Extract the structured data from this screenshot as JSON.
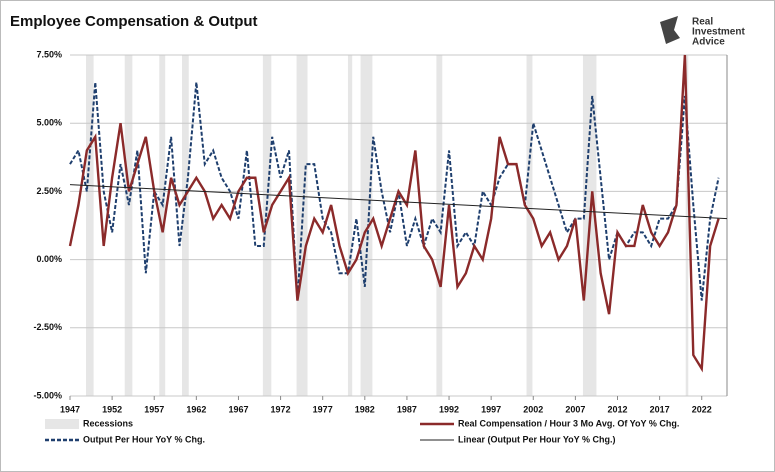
{
  "chart_data": {
    "type": "line",
    "title": "Employee Compensation & Output",
    "logo": [
      "Real",
      "Investment",
      "Advice"
    ],
    "x": [
      1947,
      1948,
      1949,
      1950,
      1951,
      1952,
      1953,
      1954,
      1955,
      1956,
      1957,
      1958,
      1959,
      1960,
      1961,
      1962,
      1963,
      1964,
      1965,
      1966,
      1967,
      1968,
      1969,
      1970,
      1971,
      1972,
      1973,
      1974,
      1975,
      1976,
      1977,
      1978,
      1979,
      1980,
      1981,
      1982,
      1983,
      1984,
      1985,
      1986,
      1987,
      1988,
      1989,
      1990,
      1991,
      1992,
      1993,
      1994,
      1995,
      1996,
      1997,
      1998,
      1999,
      2000,
      2001,
      2002,
      2003,
      2004,
      2005,
      2006,
      2007,
      2008,
      2009,
      2010,
      2011,
      2012,
      2013,
      2014,
      2015,
      2016,
      2017,
      2018,
      2019,
      2020,
      2021,
      2022,
      2023,
      2024
    ],
    "series": [
      {
        "name": "Real Compensation / Hour 3 Mo Avg. Of YoY % Chg.",
        "color": "#8b2a2a",
        "dash": false,
        "values": [
          0.5,
          2.0,
          4.0,
          4.5,
          0.5,
          3.0,
          5.0,
          2.5,
          3.5,
          4.5,
          2.5,
          1.0,
          3.0,
          2.0,
          2.5,
          3.0,
          2.5,
          1.5,
          2.0,
          1.5,
          2.5,
          3.0,
          3.0,
          1.0,
          2.0,
          2.5,
          3.0,
          -1.5,
          0.5,
          1.5,
          1.0,
          2.0,
          0.5,
          -0.5,
          0.0,
          1.0,
          1.5,
          0.5,
          1.5,
          2.5,
          2.0,
          4.0,
          0.5,
          0.0,
          -1.0,
          2.0,
          -1.0,
          -0.5,
          0.5,
          0.0,
          1.5,
          4.5,
          3.5,
          3.5,
          2.0,
          1.5,
          0.5,
          1.0,
          0.0,
          0.5,
          1.5,
          -1.5,
          2.5,
          -0.5,
          -2.0,
          1.0,
          0.5,
          0.5,
          2.0,
          1.0,
          0.5,
          1.0,
          2.0,
          7.5,
          -3.5,
          -4.0,
          0.5,
          1.5
        ]
      },
      {
        "name": "Output Per Hour YoY % Chg.",
        "color": "#1f3f6e",
        "dash": true,
        "values": [
          3.5,
          4.0,
          2.5,
          6.5,
          2.5,
          1.0,
          3.5,
          2.0,
          4.0,
          -0.5,
          2.5,
          2.0,
          4.5,
          0.5,
          3.0,
          6.5,
          3.5,
          4.0,
          3.0,
          2.5,
          1.5,
          4.0,
          0.5,
          0.5,
          4.5,
          3.0,
          4.0,
          -1.5,
          3.5,
          3.5,
          1.5,
          1.0,
          -0.5,
          -0.5,
          1.5,
          -1.0,
          4.5,
          2.5,
          1.0,
          2.5,
          0.5,
          1.5,
          0.5,
          1.5,
          1.0,
          4.0,
          0.5,
          1.0,
          0.5,
          2.5,
          2.0,
          3.0,
          3.5,
          3.5,
          2.0,
          5.0,
          4.0,
          3.0,
          2.0,
          1.0,
          1.5,
          1.5,
          6.0,
          3.0,
          0.0,
          1.0,
          0.5,
          1.0,
          1.0,
          0.5,
          1.5,
          1.5,
          2.0,
          6.0,
          2.0,
          -1.5,
          1.5,
          3.0
        ]
      }
    ],
    "trend": {
      "name": "Linear (Output Per Hour YoY % Chg.)",
      "color": "#222222",
      "x": [
        1947,
        2025
      ],
      "values": [
        2.75,
        1.5
      ]
    },
    "recessions": {
      "name": "Recessions",
      "color": "#e6e6e6",
      "spans": [
        [
          1948.9,
          1949.8
        ],
        [
          1953.5,
          1954.4
        ],
        [
          1957.6,
          1958.3
        ],
        [
          1960.3,
          1961.1
        ],
        [
          1969.9,
          1970.9
        ],
        [
          1973.9,
          1975.2
        ],
        [
          1980.0,
          1980.5
        ],
        [
          1981.5,
          1982.9
        ],
        [
          1990.5,
          1991.2
        ],
        [
          2001.2,
          2001.9
        ],
        [
          2007.9,
          2009.5
        ],
        [
          2020.1,
          2020.4
        ]
      ]
    },
    "xlim": [
      1947,
      2025
    ],
    "xticks": [
      1947,
      1952,
      1957,
      1962,
      1967,
      1972,
      1977,
      1982,
      1987,
      1992,
      1997,
      2002,
      2007,
      2012,
      2017,
      2022
    ],
    "ylim": [
      -5,
      7.5
    ],
    "yticks": [
      {
        "value": -5,
        "label": "-5.00%"
      },
      {
        "value": -2.5,
        "label": "-2.50%"
      },
      {
        "value": 0,
        "label": "0.00%"
      },
      {
        "value": 2.5,
        "label": "2.50%"
      },
      {
        "value": 5,
        "label": "5.00%"
      },
      {
        "value": 7.5,
        "label": "7.50%"
      }
    ],
    "grid": true
  }
}
